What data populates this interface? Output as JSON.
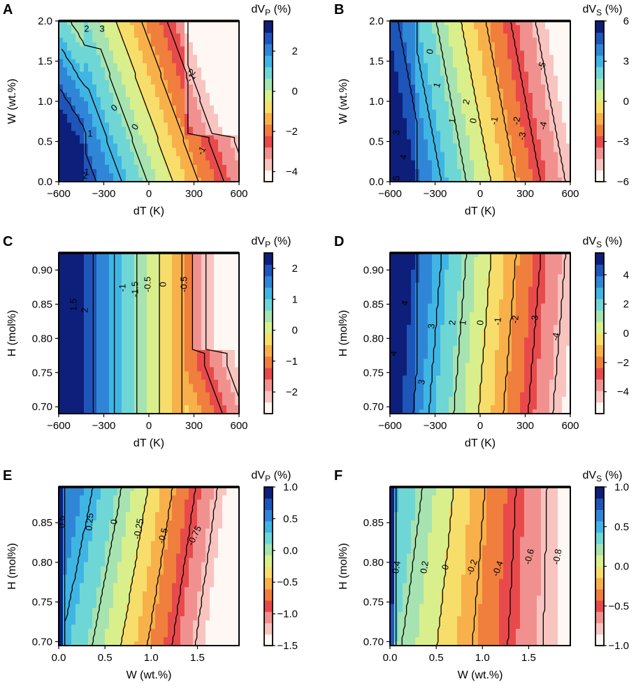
{
  "colormap": [
    "#fff7f3",
    "#f8c4c0",
    "#f1918f",
    "#e84a4c",
    "#f07e3c",
    "#f8b04a",
    "#f7dd6a",
    "#d9ef8b",
    "#a6e3b0",
    "#6fd6d6",
    "#3fb5e3",
    "#2f86d6",
    "#1e55b8",
    "#0d1f7a"
  ],
  "chart_data": [
    {
      "id": "A",
      "type": "contour",
      "title": "",
      "xlabel": "dT (K)",
      "ylabel": "W (wt.%)",
      "xticks": [
        "-600",
        "-300",
        "0",
        "300",
        "600"
      ],
      "xlim": [
        -600,
        600
      ],
      "yticks": [
        "0.0",
        "0.5",
        "1.0",
        "1.5",
        "2.0"
      ],
      "ylim": [
        0,
        2
      ],
      "colorbar": {
        "label": "dV",
        "sub": "P",
        "unit": " (%)",
        "range": [
          -4.5,
          3.5
        ],
        "ticks": [
          "2",
          "0",
          "-2",
          "-4"
        ],
        "tick_values": [
          2,
          0,
          -2,
          -4
        ]
      },
      "contour_labels": [
        "2",
        "3",
        "-1",
        "1",
        "0",
        "0",
        "-1",
        "-2",
        "1",
        "2"
      ],
      "color_fn": "A"
    },
    {
      "id": "B",
      "type": "contour",
      "title": "",
      "xlabel": "dT (K)",
      "ylabel": "W (wt.%)",
      "xticks": [
        "-600",
        "-300",
        "0",
        "300",
        "600"
      ],
      "xlim": [
        -600,
        600
      ],
      "yticks": [
        "0.0",
        "0.5",
        "1.0",
        "1.5",
        "2.0"
      ],
      "ylim": [
        0,
        2
      ],
      "colorbar": {
        "label": "dV",
        "sub": "S",
        "unit": " (%)",
        "range": [
          -6,
          6
        ],
        "ticks": [
          "6",
          "3",
          "0",
          "-3",
          "-6"
        ],
        "tick_values": [
          6,
          3,
          0,
          -3,
          -6
        ]
      },
      "contour_labels": [
        "0",
        "1",
        "2",
        "1",
        "0",
        "-1",
        "-2",
        "-3",
        "-4",
        "-5",
        "3",
        "4",
        "5"
      ],
      "color_fn": "B"
    },
    {
      "id": "C",
      "type": "contour",
      "title": "",
      "xlabel": "dT (K)",
      "ylabel": "H (mol%)",
      "xticks": [
        "-600",
        "-300",
        "0",
        "300",
        "600"
      ],
      "xlim": [
        -600,
        600
      ],
      "yticks": [
        "0.70",
        "0.75",
        "0.80",
        "0.85",
        "0.90"
      ],
      "ylim": [
        0.69,
        0.925
      ],
      "colorbar": {
        "label": "dV",
        "sub": "P",
        "unit": " (%)",
        "range": [
          -2.7,
          2.5
        ],
        "ticks": [
          "2",
          "1",
          "0",
          "-1",
          "-2"
        ],
        "tick_values": [
          2,
          1,
          0,
          -1,
          -2
        ]
      },
      "contour_labels": [
        "-1.5",
        "-1",
        "-0.5",
        "0",
        "-0.5",
        "-1",
        "1.5",
        "2"
      ],
      "color_fn": "C"
    },
    {
      "id": "D",
      "type": "contour",
      "title": "",
      "xlabel": "dT (K)",
      "ylabel": "H (mol%)",
      "xticks": [
        "-600",
        "-300",
        "0",
        "300",
        "600"
      ],
      "xlim": [
        -600,
        600
      ],
      "yticks": [
        "0.70",
        "0.75",
        "0.80",
        "0.85",
        "0.90"
      ],
      "ylim": [
        0.69,
        0.925
      ],
      "colorbar": {
        "label": "dV",
        "sub": "S",
        "unit": " (%)",
        "range": [
          -5.5,
          5.5
        ],
        "ticks": [
          "4",
          "2",
          "0",
          "-2",
          "-4"
        ],
        "tick_values": [
          4,
          2,
          0,
          -2,
          -4
        ]
      },
      "contour_labels": [
        "4",
        "3",
        "2",
        "1",
        "0",
        "-1",
        "-2",
        "-3",
        "-4",
        "4",
        "3"
      ],
      "color_fn": "D"
    },
    {
      "id": "E",
      "type": "contour",
      "title": "",
      "xlabel": "W (wt.%)",
      "ylabel": "H (mol%)",
      "xticks": [
        "0.0",
        "0.5",
        "1.0",
        "1.5"
      ],
      "xlim": [
        0,
        1.95
      ],
      "yticks": [
        "0.70",
        "0.75",
        "0.80",
        "0.85"
      ],
      "ylim": [
        0.695,
        0.895
      ],
      "colorbar": {
        "label": "dV",
        "sub": "P",
        "unit": " (%)",
        "range": [
          -1.5,
          1.0
        ],
        "ticks": [
          "1.0",
          "0.5",
          "0.0",
          "-0.5",
          "-1.0",
          "-1.5"
        ],
        "tick_values": [
          1.0,
          0.5,
          0.0,
          -0.5,
          -1.0,
          -1.5
        ]
      },
      "contour_labels": [
        "0.5",
        "0.25",
        "0",
        "-0.25",
        "-0.5",
        "-0.75"
      ],
      "color_fn": "E"
    },
    {
      "id": "F",
      "type": "contour",
      "title": "",
      "xlabel": "W (wt.%)",
      "ylabel": "H (mol%)",
      "xticks": [
        "0.0",
        "0.5",
        "1.0",
        "1.5"
      ],
      "xlim": [
        0,
        1.95
      ],
      "yticks": [
        "0.70",
        "0.75",
        "0.80",
        "0.85"
      ],
      "ylim": [
        0.695,
        0.895
      ],
      "colorbar": {
        "label": "dV",
        "sub": "S",
        "unit": " (%)",
        "range": [
          -1.0,
          1.0
        ],
        "ticks": [
          "1.0",
          "0.5",
          "0.0",
          "-0.5",
          "-1.0"
        ],
        "tick_values": [
          1.0,
          0.5,
          0.0,
          -0.5,
          -1.0
        ]
      },
      "contour_labels": [
        "0.4",
        "0.2",
        "0",
        "-0.2",
        "-0.4",
        "-0.6",
        "-0.8"
      ],
      "color_fn": "F"
    }
  ]
}
